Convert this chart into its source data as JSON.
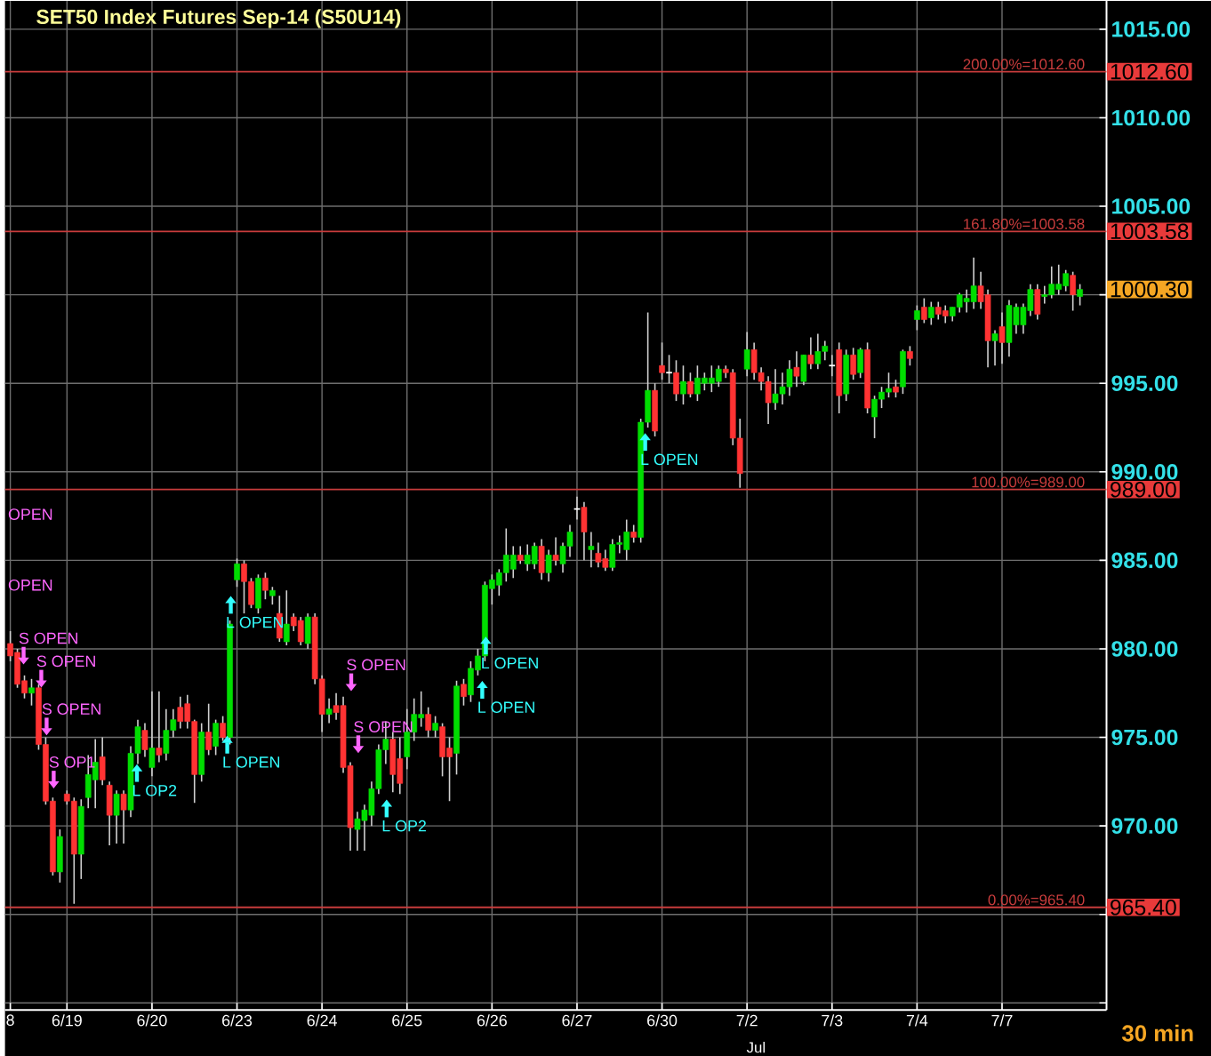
{
  "chart_data": {
    "type": "candlestick",
    "title": "SET50 Index Futures Sep-14 (S50U14)",
    "categories": [
      "8",
      null,
      null,
      null,
      null,
      null,
      null,
      null,
      "6/19",
      null,
      null,
      null,
      null,
      null,
      null,
      null,
      null,
      null,
      null,
      null,
      "6/20",
      null,
      null,
      null,
      null,
      null,
      null,
      null,
      null,
      null,
      null,
      null,
      "6/23",
      null,
      null,
      null,
      null,
      null,
      null,
      null,
      null,
      null,
      null,
      null,
      "6/24",
      null,
      null,
      null,
      null,
      null,
      null,
      null,
      null,
      null,
      null,
      null,
      "6/25",
      null,
      null,
      null,
      null,
      null,
      null,
      null,
      null,
      null,
      null,
      null,
      "6/26",
      null,
      null,
      null,
      null,
      null,
      null,
      null,
      null,
      null,
      null,
      null,
      "6/27",
      null,
      null,
      null,
      null,
      null,
      null,
      null,
      null,
      null,
      null,
      null,
      "6/30",
      null,
      null,
      null,
      null,
      null,
      null,
      null,
      null,
      null,
      null,
      null,
      "7/2",
      null,
      null,
      null,
      null,
      null,
      null,
      null,
      null,
      null,
      null,
      null,
      "7/3",
      null,
      null,
      null,
      null,
      null,
      null,
      null,
      null,
      null,
      null,
      null,
      "7/4",
      null,
      null,
      null,
      null,
      null,
      null,
      null,
      null,
      null,
      null,
      null,
      "7/7",
      null,
      null,
      null,
      null,
      null,
      null,
      null,
      null,
      null,
      null,
      null
    ],
    "ohlc": [
      [
        980.3,
        981.0,
        979.3,
        979.6
      ],
      [
        979.8,
        980.0,
        977.8,
        978.0
      ],
      [
        978.2,
        978.5,
        977.2,
        977.5
      ],
      [
        977.5,
        978.3,
        976.8,
        977.8
      ],
      [
        977.8,
        978.0,
        974.3,
        974.6
      ],
      [
        974.6,
        975.0,
        971.2,
        971.4
      ],
      [
        971.4,
        971.6,
        967.2,
        967.4
      ],
      [
        967.4,
        969.8,
        966.8,
        969.4
      ],
      [
        971.8,
        972.0,
        971.2,
        971.4
      ],
      [
        971.4,
        971.6,
        965.6,
        968.4
      ],
      [
        968.4,
        971.5,
        967.0,
        971.1
      ],
      [
        971.6,
        974.0,
        971.0,
        972.9
      ],
      [
        972.6,
        974.9,
        971.0,
        973.6
      ],
      [
        973.9,
        975.0,
        972.3,
        972.6
      ],
      [
        972.3,
        972.5,
        968.9,
        970.6
      ],
      [
        970.6,
        972.0,
        969.0,
        971.8
      ],
      [
        971.8,
        972.0,
        969.0,
        970.9
      ],
      [
        970.9,
        974.5,
        970.5,
        974.1
      ],
      [
        974.1,
        976.0,
        973.5,
        975.6
      ],
      [
        975.4,
        975.8,
        973.9,
        974.3
      ],
      [
        973.3,
        977.6,
        972.8,
        974.4
      ],
      [
        974.4,
        977.6,
        973.6,
        974.0
      ],
      [
        974.1,
        976.6,
        973.7,
        975.4
      ],
      [
        975.4,
        976.6,
        975.0,
        976.0
      ],
      [
        976.7,
        977.3,
        975.5,
        975.9
      ],
      [
        976.9,
        977.4,
        975.5,
        975.9
      ],
      [
        975.9,
        976.0,
        971.3,
        972.9
      ],
      [
        972.9,
        975.8,
        972.5,
        975.3
      ],
      [
        975.3,
        976.9,
        974.0,
        974.3
      ],
      [
        974.5,
        976.0,
        974.0,
        975.8
      ],
      [
        975.8,
        976.2,
        974.8,
        975.0
      ],
      [
        975.0,
        981.6,
        974.6,
        981.4
      ],
      [
        983.9,
        985.1,
        983.5,
        984.8
      ],
      [
        984.8,
        985.0,
        982.0,
        983.8
      ],
      [
        983.8,
        984.0,
        982.3,
        982.5
      ],
      [
        982.3,
        984.2,
        982.0,
        984.0
      ],
      [
        984.0,
        984.3,
        982.8,
        983.3
      ],
      [
        983.0,
        983.5,
        982.5,
        983.3
      ],
      [
        982.0,
        983.0,
        980.4,
        980.6
      ],
      [
        980.4,
        983.3,
        980.2,
        981.4
      ],
      [
        981.8,
        982.0,
        981.0,
        981.3
      ],
      [
        981.6,
        981.8,
        980.2,
        980.4
      ],
      [
        980.3,
        982.0,
        980.0,
        981.8
      ],
      [
        981.8,
        982.0,
        978.0,
        978.3
      ],
      [
        978.3,
        978.5,
        975.3,
        976.3
      ],
      [
        976.3,
        977.2,
        975.8,
        976.6
      ],
      [
        976.8,
        977.5,
        976.0,
        976.4
      ],
      [
        976.8,
        977.3,
        973.0,
        973.3
      ],
      [
        973.4,
        973.6,
        968.6,
        969.9
      ],
      [
        969.8,
        970.8,
        968.6,
        970.4
      ],
      [
        970.3,
        971.2,
        968.6,
        970.9
      ],
      [
        970.6,
        972.5,
        970.0,
        972.1
      ],
      [
        972.1,
        974.6,
        971.8,
        974.3
      ],
      [
        974.3,
        975.9,
        973.5,
        974.9
      ],
      [
        974.9,
        975.3,
        971.9,
        972.9
      ],
      [
        973.8,
        975.0,
        971.8,
        972.4
      ],
      [
        973.9,
        976.6,
        973.2,
        975.3
      ],
      [
        975.3,
        977.2,
        974.8,
        976.3
      ],
      [
        976.1,
        977.6,
        975.6,
        976.3
      ],
      [
        976.3,
        976.7,
        975.0,
        975.4
      ],
      [
        975.4,
        976.2,
        975.0,
        975.8
      ],
      [
        975.6,
        975.8,
        972.8,
        973.9
      ],
      [
        974.4,
        975.0,
        971.4,
        973.9
      ],
      [
        974.1,
        978.2,
        972.9,
        977.9
      ],
      [
        978.0,
        978.3,
        976.8,
        977.3
      ],
      [
        977.4,
        979.3,
        977.0,
        978.9
      ],
      [
        978.8,
        980.0,
        978.5,
        979.6
      ],
      [
        979.6,
        983.8,
        979.3,
        983.6
      ],
      [
        983.4,
        984.2,
        982.5,
        983.9
      ],
      [
        983.6,
        984.5,
        983.0,
        984.3
      ],
      [
        984.3,
        986.8,
        983.8,
        985.3
      ],
      [
        984.5,
        985.8,
        984.0,
        985.3
      ],
      [
        985.3,
        985.8,
        984.8,
        985.0
      ],
      [
        984.8,
        985.9,
        984.4,
        985.3
      ],
      [
        984.8,
        986.0,
        984.5,
        985.8
      ],
      [
        985.8,
        986.2,
        983.9,
        984.3
      ],
      [
        984.3,
        985.6,
        983.8,
        985.3
      ],
      [
        985.3,
        986.3,
        984.7,
        985.0
      ],
      [
        984.8,
        986.0,
        984.3,
        985.8
      ],
      [
        985.8,
        987.0,
        985.2,
        986.6
      ],
      [
        987.9,
        988.6,
        987.3,
        987.9
      ],
      [
        988.0,
        988.3,
        985.0,
        986.6
      ],
      [
        985.6,
        986.6,
        984.6,
        985.8
      ],
      [
        985.4,
        986.0,
        984.6,
        984.9
      ],
      [
        985.1,
        985.6,
        984.4,
        984.6
      ],
      [
        984.6,
        986.2,
        984.4,
        985.9
      ],
      [
        985.9,
        986.4,
        985.4,
        986.0
      ],
      [
        985.6,
        987.3,
        985.0,
        986.6
      ],
      [
        986.6,
        987.0,
        986.0,
        986.3
      ],
      [
        986.3,
        993.0,
        986.0,
        992.8
      ],
      [
        992.8,
        999.0,
        992.5,
        994.6
      ],
      [
        994.6,
        995.0,
        992.0,
        992.3
      ],
      [
        996.0,
        997.3,
        995.2,
        995.6
      ],
      [
        995.6,
        996.6,
        995.0,
        995.6
      ],
      [
        995.6,
        996.3,
        994.0,
        994.4
      ],
      [
        994.4,
        996.0,
        993.8,
        995.1
      ],
      [
        995.1,
        995.6,
        994.2,
        994.4
      ],
      [
        994.4,
        996.0,
        994.0,
        995.3
      ],
      [
        995.0,
        995.6,
        994.6,
        995.3
      ],
      [
        995.0,
        996.0,
        994.5,
        995.3
      ],
      [
        995.1,
        996.0,
        994.8,
        995.8
      ],
      [
        995.8,
        996.0,
        995.3,
        995.6
      ],
      [
        995.6,
        995.8,
        991.5,
        991.9
      ],
      [
        991.9,
        993.0,
        989.1,
        989.9
      ],
      [
        995.8,
        997.9,
        995.4,
        996.9
      ],
      [
        996.9,
        997.3,
        995.2,
        995.6
      ],
      [
        995.6,
        995.9,
        994.6,
        995.1
      ],
      [
        995.1,
        995.4,
        992.7,
        993.9
      ],
      [
        993.9,
        995.8,
        993.5,
        994.4
      ],
      [
        994.4,
        995.6,
        993.8,
        994.8
      ],
      [
        994.8,
        996.3,
        994.3,
        995.8
      ],
      [
        995.9,
        996.8,
        994.8,
        995.4
      ],
      [
        995.1,
        996.6,
        994.9,
        996.6
      ],
      [
        996.6,
        997.6,
        995.8,
        996.1
      ],
      [
        996.1,
        997.8,
        995.8,
        996.8
      ],
      [
        996.8,
        997.4,
        996.3,
        997.1
      ],
      [
        996.0,
        996.6,
        995.4,
        996.0
      ],
      [
        996.9,
        997.3,
        993.3,
        994.3
      ],
      [
        994.4,
        996.9,
        994.0,
        996.6
      ],
      [
        996.6,
        997.0,
        995.2,
        995.5
      ],
      [
        995.6,
        997.0,
        995.3,
        996.9
      ],
      [
        996.9,
        997.3,
        993.3,
        993.6
      ],
      [
        993.1,
        994.3,
        991.9,
        994.1
      ],
      [
        994.1,
        994.8,
        993.6,
        994.5
      ],
      [
        994.5,
        995.6,
        994.2,
        994.7
      ],
      [
        994.8,
        995.2,
        994.2,
        994.5
      ],
      [
        994.8,
        996.9,
        994.4,
        996.8
      ],
      [
        996.8,
        997.1,
        996.0,
        996.4
      ],
      [
        998.6,
        999.4,
        998.0,
        999.1
      ],
      [
        999.3,
        999.8,
        998.4,
        998.6
      ],
      [
        998.7,
        999.6,
        998.3,
        999.3
      ],
      [
        999.3,
        999.6,
        998.6,
        998.9
      ],
      [
        999.1,
        999.4,
        998.4,
        998.8
      ],
      [
        998.8,
        999.3,
        998.5,
        999.3
      ],
      [
        999.3,
        1000.1,
        999.0,
        1000.0
      ],
      [
        999.6,
        1000.3,
        999.0,
        999.8
      ],
      [
        999.6,
        1002.1,
        999.2,
        1000.5
      ],
      [
        1000.5,
        1001.3,
        999.2,
        999.6
      ],
      [
        1000.0,
        1000.3,
        995.9,
        997.4
      ],
      [
        997.4,
        998.0,
        996.0,
        997.8
      ],
      [
        998.2,
        999.0,
        996.1,
        997.3
      ],
      [
        997.3,
        999.7,
        996.5,
        999.4
      ],
      [
        998.3,
        999.5,
        997.8,
        999.3
      ],
      [
        998.3,
        999.5,
        997.8,
        999.3
      ],
      [
        999.1,
        1000.6,
        998.8,
        1000.3
      ],
      [
        1000.3,
        1000.6,
        998.6,
        998.9
      ],
      [
        999.9,
        1000.5,
        999.5,
        1000.0
      ],
      [
        1000.0,
        1001.6,
        999.8,
        1000.6
      ],
      [
        1000.3,
        1001.7,
        1000.0,
        1000.6
      ],
      [
        1000.5,
        1001.4,
        1000.2,
        1001.2
      ],
      [
        1001.1,
        1001.3,
        999.1,
        1000.0
      ],
      [
        999.9,
        1000.6,
        999.4,
        1000.3
      ]
    ],
    "ylim": [
      959.6,
      1016.6
    ],
    "yticks": [
      {
        "value": 960,
        "label": null
      },
      {
        "value": 965,
        "label": null
      },
      {
        "value": 970,
        "label": "970.00"
      },
      {
        "value": 975,
        "label": "975.00"
      },
      {
        "value": 980,
        "label": "980.00"
      },
      {
        "value": 985,
        "label": "985.00"
      },
      {
        "value": 990,
        "label": "990.00"
      },
      {
        "value": 995,
        "label": "995.00"
      },
      {
        "value": 1000,
        "label": null
      },
      {
        "value": 1005,
        "label": "1005.00"
      },
      {
        "value": 1010,
        "label": "1010.00"
      },
      {
        "value": 1015,
        "label": "1015.00"
      }
    ],
    "grid": true,
    "ref_lines": [
      {
        "axis": "y",
        "value": 1012.6,
        "label": "200.00%=1012.60",
        "color": "#c83c3c"
      },
      {
        "axis": "y",
        "value": 1003.58,
        "label": "161.80%=1003.58",
        "color": "#c83c3c"
      },
      {
        "axis": "y",
        "value": 989.0,
        "label": "100.00%=989.00",
        "color": "#c83c3c"
      },
      {
        "axis": "y",
        "value": 965.4,
        "label": "0.00%=965.40",
        "color": "#c83c3c"
      }
    ],
    "annotations": [
      "1012.60",
      "1003.58",
      "1000.30",
      "989.00",
      "965.40",
      "Jul",
      "30 min",
      "OPEN",
      "OPEN",
      "S OPEN",
      "S OPEN",
      "S OPEN",
      "S OP1",
      "L OP2",
      "L OPEN",
      "L OPEN",
      "S OPEN",
      "S OPEN",
      "L OP2",
      "L OPEN",
      "L OPEN",
      "L OPEN"
    ]
  }
}
